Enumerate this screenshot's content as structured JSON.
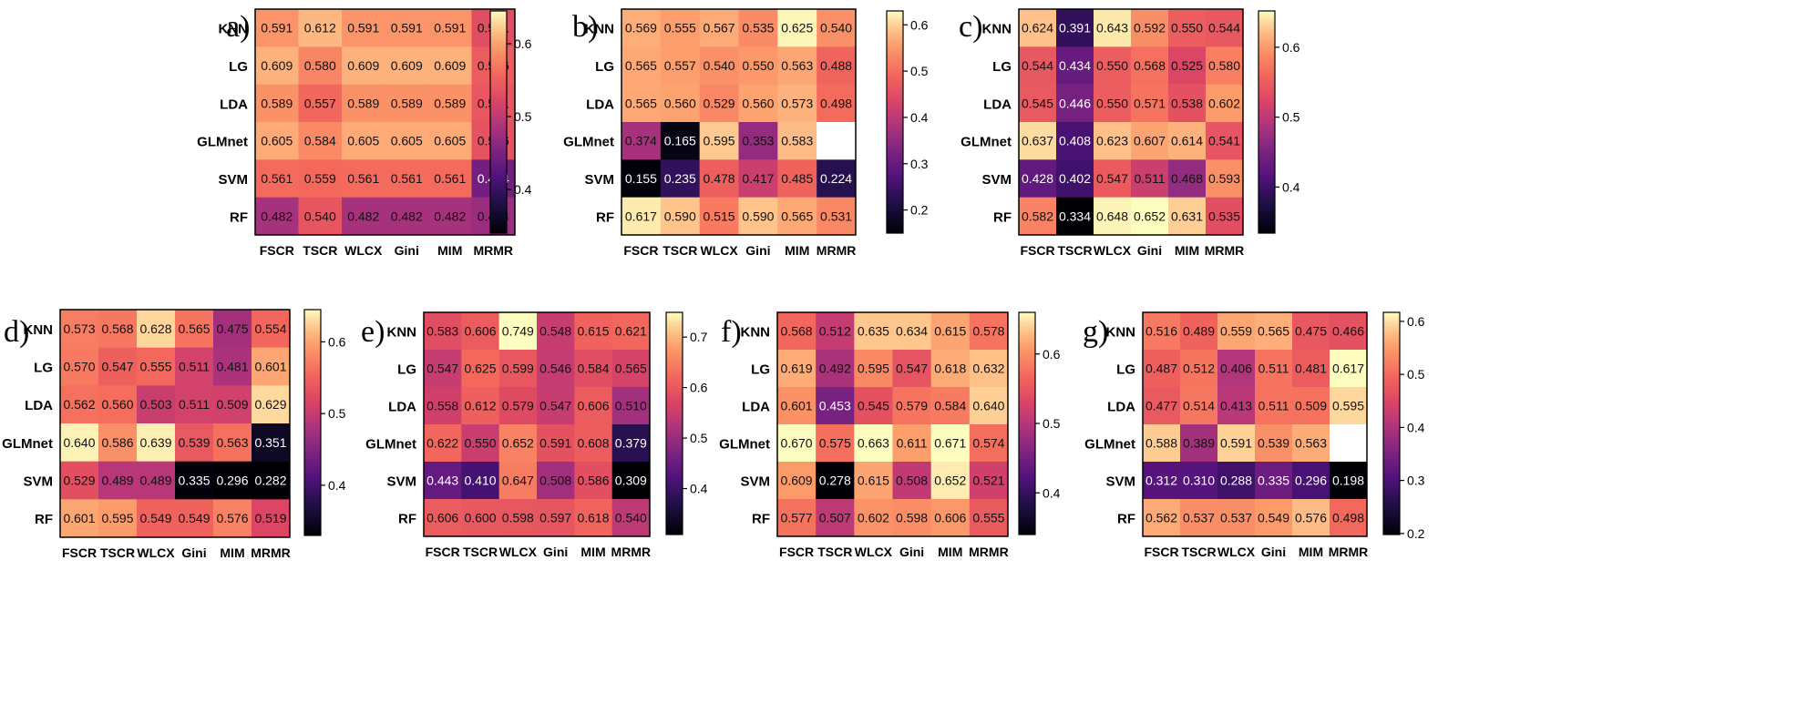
{
  "chart_data": [
    {
      "panel": "a)",
      "type": "heatmap",
      "rows": [
        "KNN",
        "LG",
        "LDA",
        "GLMnet",
        "SVM",
        "RF"
      ],
      "cols": [
        "FSCR",
        "TSCR",
        "WLCX",
        "Gini",
        "MIM",
        "MRMR"
      ],
      "values": [
        [
          0.591,
          0.612,
          0.591,
          0.591,
          0.591,
          0.531
        ],
        [
          0.609,
          0.58,
          0.609,
          0.609,
          0.609,
          0.546
        ],
        [
          0.589,
          0.557,
          0.589,
          0.589,
          0.589,
          0.541
        ],
        [
          0.605,
          0.584,
          0.605,
          0.605,
          0.605,
          0.536
        ],
        [
          0.561,
          0.559,
          0.561,
          0.561,
          0.561,
          0.444
        ],
        [
          0.482,
          0.54,
          0.482,
          0.482,
          0.482,
          0.474
        ]
      ],
      "colorbar": {
        "min": 0.34,
        "max": 0.645,
        "ticks": [
          0.4,
          0.5,
          0.6
        ],
        "tick_labels": [
          "0.4",
          "0.5",
          "0.6"
        ]
      }
    },
    {
      "panel": "b)",
      "type": "heatmap",
      "rows": [
        "KNN",
        "LG",
        "LDA",
        "GLMnet",
        "SVM",
        "RF"
      ],
      "cols": [
        "FSCR",
        "TSCR",
        "WLCX",
        "Gini",
        "MIM",
        "MRMR"
      ],
      "values": [
        [
          0.569,
          0.555,
          0.567,
          0.535,
          0.625,
          0.54
        ],
        [
          0.565,
          0.557,
          0.54,
          0.55,
          0.563,
          0.488
        ],
        [
          0.565,
          0.56,
          0.529,
          0.56,
          0.573,
          0.498
        ],
        [
          0.374,
          0.165,
          0.595,
          0.353,
          0.583,
          null
        ],
        [
          0.155,
          0.235,
          0.478,
          0.417,
          0.485,
          0.224
        ],
        [
          0.617,
          0.59,
          0.515,
          0.59,
          0.565,
          0.531
        ]
      ],
      "colorbar": {
        "min": 0.15,
        "max": 0.63,
        "ticks": [
          0.2,
          0.3,
          0.4,
          0.5,
          0.6
        ],
        "tick_labels": [
          "0.2",
          "0.3",
          "0.4",
          "0.5",
          "0.6"
        ]
      }
    },
    {
      "panel": "c)",
      "type": "heatmap",
      "rows": [
        "KNN",
        "LG",
        "LDA",
        "GLMnet",
        "SVM",
        "RF"
      ],
      "cols": [
        "FSCR",
        "TSCR",
        "WLCX",
        "Gini",
        "MIM",
        "MRMR"
      ],
      "values": [
        [
          0.624,
          0.391,
          0.643,
          0.592,
          0.55,
          0.544
        ],
        [
          0.544,
          0.434,
          0.55,
          0.568,
          0.525,
          0.58
        ],
        [
          0.545,
          0.446,
          0.55,
          0.571,
          0.538,
          0.602
        ],
        [
          0.637,
          0.408,
          0.623,
          0.607,
          0.614,
          0.541
        ],
        [
          0.428,
          0.402,
          0.547,
          0.511,
          0.468,
          0.593
        ],
        [
          0.582,
          0.334,
          0.648,
          0.652,
          0.631,
          0.535
        ]
      ],
      "colorbar": {
        "min": 0.334,
        "max": 0.652,
        "ticks": [
          0.4,
          0.5,
          0.6
        ],
        "tick_labels": [
          "0.4",
          "0.5",
          "0.6"
        ]
      }
    },
    {
      "panel": "d)",
      "type": "heatmap",
      "rows": [
        "KNN",
        "LG",
        "LDA",
        "GLMnet",
        "SVM",
        "RF"
      ],
      "cols": [
        "FSCR",
        "TSCR",
        "WLCX",
        "Gini",
        "MIM",
        "MRMR"
      ],
      "values": [
        [
          0.573,
          0.568,
          0.628,
          0.565,
          0.475,
          0.554
        ],
        [
          0.57,
          0.547,
          0.555,
          0.511,
          0.481,
          0.601
        ],
        [
          0.562,
          0.56,
          0.503,
          0.511,
          0.509,
          0.629
        ],
        [
          0.64,
          0.586,
          0.639,
          0.539,
          0.563,
          0.351
        ],
        [
          0.529,
          0.489,
          0.489,
          0.335,
          0.296,
          0.282
        ],
        [
          0.601,
          0.595,
          0.549,
          0.549,
          0.576,
          0.519
        ]
      ],
      "colorbar": {
        "min": 0.33,
        "max": 0.645,
        "ticks": [
          0.4,
          0.5,
          0.6
        ],
        "tick_labels": [
          "0.4",
          "0.5",
          "0.6"
        ]
      }
    },
    {
      "panel": "e)",
      "type": "heatmap",
      "rows": [
        "KNN",
        "LG",
        "LDA",
        "GLMnet",
        "SVM",
        "RF"
      ],
      "cols": [
        "FSCR",
        "TSCR",
        "WLCX",
        "Gini",
        "MIM",
        "MRMR"
      ],
      "values": [
        [
          0.583,
          0.606,
          0.749,
          0.548,
          0.615,
          0.621
        ],
        [
          0.547,
          0.625,
          0.599,
          0.546,
          0.584,
          0.565
        ],
        [
          0.558,
          0.612,
          0.579,
          0.547,
          0.606,
          0.51
        ],
        [
          0.622,
          0.55,
          0.652,
          0.591,
          0.608,
          0.379
        ],
        [
          0.443,
          0.41,
          0.647,
          0.508,
          0.586,
          0.309
        ],
        [
          0.606,
          0.6,
          0.598,
          0.597,
          0.618,
          0.54
        ]
      ],
      "colorbar": {
        "min": 0.309,
        "max": 0.749,
        "ticks": [
          0.4,
          0.5,
          0.6,
          0.7
        ],
        "tick_labels": [
          "0.4",
          "0.5",
          "0.6",
          "0.7"
        ]
      }
    },
    {
      "panel": "f)",
      "type": "heatmap",
      "rows": [
        "KNN",
        "LG",
        "LDA",
        "GLMnet",
        "SVM",
        "RF"
      ],
      "cols": [
        "FSCR",
        "TSCR",
        "WLCX",
        "Gini",
        "MIM",
        "MRMR"
      ],
      "values": [
        [
          0.568,
          0.512,
          0.635,
          0.634,
          0.615,
          0.578
        ],
        [
          0.619,
          0.492,
          0.595,
          0.547,
          0.618,
          0.632
        ],
        [
          0.601,
          0.453,
          0.545,
          0.579,
          0.584,
          0.64
        ],
        [
          0.67,
          0.575,
          0.663,
          0.611,
          0.671,
          0.574
        ],
        [
          0.609,
          0.278,
          0.615,
          0.508,
          0.652,
          0.521
        ],
        [
          0.577,
          0.507,
          0.602,
          0.598,
          0.606,
          0.555
        ]
      ],
      "colorbar": {
        "min": 0.34,
        "max": 0.66,
        "ticks": [
          0.4,
          0.5,
          0.6
        ],
        "tick_labels": [
          "0.4",
          "0.5",
          "0.6"
        ]
      }
    },
    {
      "panel": "g)",
      "type": "heatmap",
      "rows": [
        "KNN",
        "LG",
        "LDA",
        "GLMnet",
        "SVM",
        "RF"
      ],
      "cols": [
        "FSCR",
        "TSCR",
        "WLCX",
        "Gini",
        "MIM",
        "MRMR"
      ],
      "values": [
        [
          0.516,
          0.489,
          0.559,
          0.565,
          0.475,
          0.466
        ],
        [
          0.487,
          0.512,
          0.406,
          0.511,
          0.481,
          0.617
        ],
        [
          0.477,
          0.514,
          0.413,
          0.511,
          0.509,
          0.595
        ],
        [
          0.588,
          0.389,
          0.591,
          0.539,
          0.563,
          null
        ],
        [
          0.312,
          0.31,
          0.288,
          0.335,
          0.296,
          0.198
        ],
        [
          0.562,
          0.537,
          0.537,
          0.549,
          0.576,
          0.498
        ]
      ],
      "colorbar": {
        "min": 0.198,
        "max": 0.617,
        "ticks": [
          0.2,
          0.3,
          0.4,
          0.5,
          0.6
        ],
        "tick_labels": [
          "0.2",
          "0.3",
          "0.4",
          "0.5",
          "0.6"
        ]
      }
    }
  ]
}
